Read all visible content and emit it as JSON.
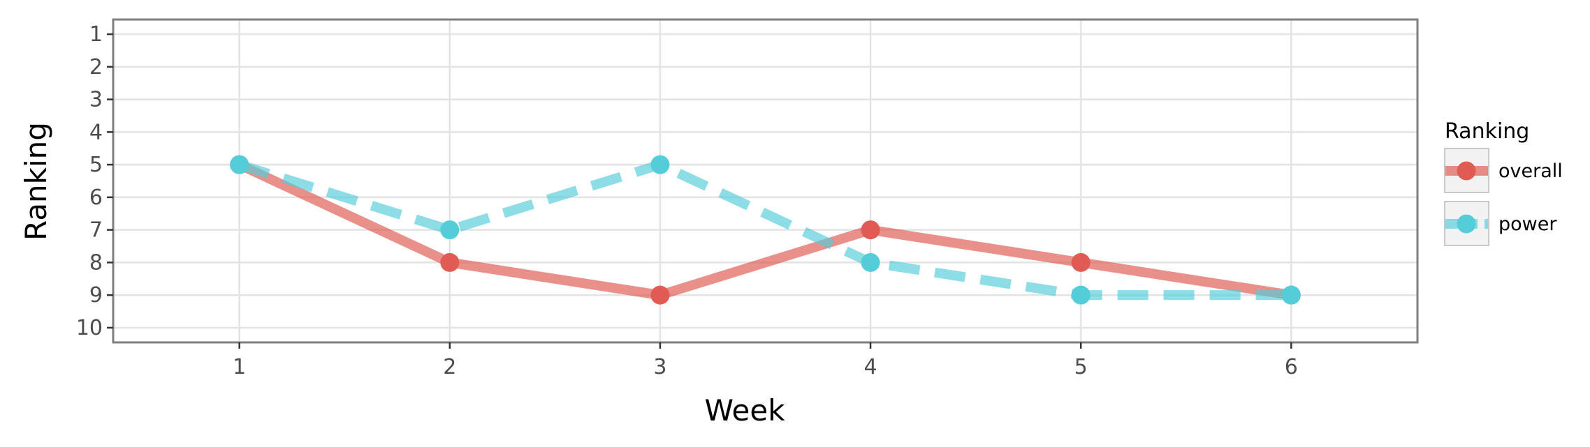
{
  "chart_data": {
    "type": "line",
    "title": "",
    "xlabel": "Week",
    "ylabel": "Ranking",
    "x": [
      1,
      2,
      3,
      4,
      5,
      6
    ],
    "xlim": [
      0.4,
      6.6
    ],
    "ylim": [
      0.55,
      10.45
    ],
    "y_reversed": true,
    "x_ticks": [
      "1",
      "2",
      "3",
      "4",
      "5",
      "6"
    ],
    "y_ticks": [
      "1",
      "2",
      "3",
      "4",
      "5",
      "6",
      "7",
      "8",
      "9",
      "10"
    ],
    "grid": true,
    "legend": {
      "title": "Ranking",
      "position": "right"
    },
    "series": [
      {
        "name": "overall",
        "values": [
          5,
          8,
          9,
          7,
          8,
          9
        ],
        "color": "#e05b53",
        "dash": "solid"
      },
      {
        "name": "power",
        "values": [
          5,
          7,
          5,
          8,
          9,
          9
        ],
        "color": "#55cdd8",
        "dash": "dashed"
      }
    ]
  }
}
